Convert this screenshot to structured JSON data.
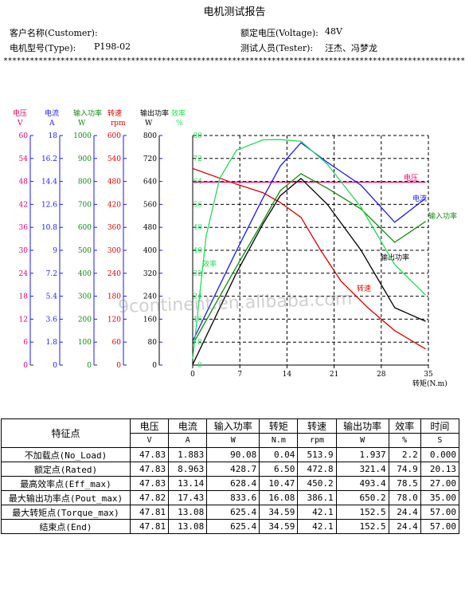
{
  "report": {
    "title": "电机测试报告",
    "customer_label": "客户名称(Customer):",
    "customer_value": "",
    "voltage_label": "额定电压(Voltage):",
    "voltage_value": "48V",
    "type_label": "电机型号(Type):",
    "type_value": "P198-02",
    "tester_label": "测试人员(Tester):",
    "tester_value": "汪杰、冯梦龙",
    "stars": "************************************************************************************************************************"
  },
  "watermark": "9continent.en.alibaba.com",
  "chart_data": {
    "type": "line",
    "xlabel": "转矩(N.m)",
    "x_ticks": [
      0,
      7,
      14,
      21,
      28,
      35
    ],
    "xlim": [
      0,
      35
    ],
    "axes": [
      {
        "name": "电压",
        "unit": "V",
        "color": "#e0006e",
        "ticks": [
          "60",
          "54",
          "48",
          "42",
          "36",
          "30",
          "24",
          "18",
          "12",
          "6",
          "0"
        ],
        "max": 60
      },
      {
        "name": "电流",
        "unit": "A",
        "color": "#1a1aff",
        "ticks": [
          "18",
          "16.2",
          "14.4",
          "12.6",
          "10.8",
          "9",
          "7.2",
          "5.4",
          "3.6",
          "1.8",
          "0"
        ],
        "max": 18
      },
      {
        "name": "输入功率",
        "unit": "W",
        "color": "#118a11",
        "ticks": [
          "1000",
          "900",
          "800",
          "700",
          "600",
          "500",
          "400",
          "300",
          "200",
          "100",
          "0"
        ],
        "max": 1000
      },
      {
        "name": "转速",
        "unit": "rpm",
        "color": "#e00000",
        "ticks": [
          "600",
          "540",
          "480",
          "420",
          "360",
          "300",
          "240",
          "180",
          "120",
          "60",
          "0"
        ],
        "max": 600
      },
      {
        "name": "输出功率",
        "unit": "W",
        "color": "#000000",
        "ticks": [
          "800",
          "720",
          "640",
          "560",
          "480",
          "400",
          "320",
          "240",
          "160",
          "80",
          "0"
        ],
        "max": 800
      },
      {
        "name": "效率",
        "unit": "%",
        "color": "#22dd55",
        "ticks": [
          "80",
          "72",
          "64",
          "56",
          "48",
          "40",
          "32",
          "24",
          "16",
          "8",
          "0"
        ],
        "max": 80
      }
    ],
    "series": [
      {
        "name": "电压",
        "label": "电压",
        "color": "#e0006e",
        "max": 60,
        "x": [
          0,
          5,
          10,
          15,
          20,
          25,
          30,
          34.59
        ],
        "y": [
          47.83,
          47.83,
          47.82,
          47.82,
          47.82,
          47.81,
          47.81,
          47.81
        ]
      },
      {
        "name": "电流",
        "label": "电流",
        "color": "#1a1aff",
        "max": 18,
        "x": [
          0,
          6.5,
          10.47,
          13,
          16.08,
          20,
          25,
          30,
          34.59
        ],
        "y": [
          1.883,
          8.963,
          13.14,
          15.6,
          17.43,
          15.9,
          14.1,
          11.2,
          13.08
        ]
      },
      {
        "name": "输入功率",
        "label": "输入功率",
        "color": "#118a11",
        "max": 1000,
        "x": [
          0,
          6.5,
          10.47,
          13,
          16.08,
          20,
          25,
          30,
          34.59
        ],
        "y": [
          90.08,
          428.7,
          628.4,
          760,
          833.6,
          770,
          680,
          535,
          625.4
        ]
      },
      {
        "name": "转速",
        "label": "转速",
        "color": "#e00000",
        "max": 600,
        "x": [
          0,
          6.5,
          10.47,
          13,
          16.08,
          19,
          22,
          26,
          30,
          34.59
        ],
        "y": [
          513.9,
          472.8,
          450.2,
          425,
          386.1,
          300,
          220,
          150,
          90,
          42.1
        ]
      },
      {
        "name": "输出功率",
        "label": "输出功率",
        "color": "#000000",
        "max": 800,
        "x": [
          0,
          6.5,
          10.47,
          13,
          16.08,
          20,
          25,
          30,
          34.59
        ],
        "y": [
          1.937,
          321.4,
          493.4,
          590,
          650.2,
          560,
          400,
          200,
          152.5
        ]
      },
      {
        "name": "效率",
        "label": "效率",
        "color": "#22dd55",
        "max": 80,
        "x": [
          0,
          2,
          4,
          6.5,
          10.47,
          13,
          16.08,
          20,
          25,
          30,
          34.59
        ],
        "y": [
          2.2,
          45,
          65,
          74.9,
          78.5,
          78.6,
          78.0,
          70,
          55,
          35,
          24.4
        ]
      }
    ]
  },
  "table": {
    "header_label": "特征点",
    "columns": [
      {
        "name": "电压",
        "unit": "V"
      },
      {
        "name": "电流",
        "unit": "A"
      },
      {
        "name": "输入功率",
        "unit": "W"
      },
      {
        "name": "转矩",
        "unit": "N.m"
      },
      {
        "name": "转速",
        "unit": "rpm"
      },
      {
        "name": "输出功率",
        "unit": "W"
      },
      {
        "name": "效率",
        "unit": "%"
      },
      {
        "name": "时间",
        "unit": "S"
      }
    ],
    "rows": [
      {
        "label": "不加载点(No_Load)",
        "values": [
          "47.83",
          "1.883",
          "90.08",
          "0.04",
          "513.9",
          "1.937",
          "2.2",
          "0.000"
        ]
      },
      {
        "label": "额定点(Rated)",
        "values": [
          "47.83",
          "8.963",
          "428.7",
          "6.50",
          "472.8",
          "321.4",
          "74.9",
          "20.13"
        ]
      },
      {
        "label": "最高效率点(Eff_max)",
        "values": [
          "47.83",
          "13.14",
          "628.4",
          "10.47",
          "450.2",
          "493.4",
          "78.5",
          "27.00"
        ]
      },
      {
        "label": "最大输出功率点(Pout_max)",
        "values": [
          "47.82",
          "17.43",
          "833.6",
          "16.08",
          "386.1",
          "650.2",
          "78.0",
          "35.00"
        ]
      },
      {
        "label": "最大转矩点(Torque_max)",
        "values": [
          "47.81",
          "13.08",
          "625.4",
          "34.59",
          "42.1",
          "152.5",
          "24.4",
          "57.00"
        ]
      },
      {
        "label": "结束点(End)",
        "values": [
          "47.81",
          "13.08",
          "625.4",
          "34.59",
          "42.1",
          "152.5",
          "24.4",
          "57.00"
        ]
      }
    ]
  }
}
